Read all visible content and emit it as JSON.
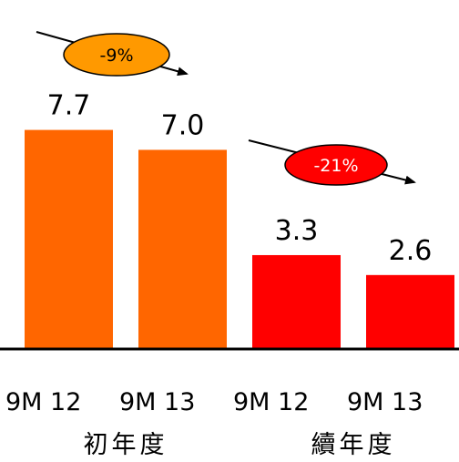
{
  "chart_data": {
    "type": "bar",
    "categories": [
      "9M 12",
      "9M 13",
      "9M 12",
      "9M 13"
    ],
    "values": [
      7.7,
      7.0,
      3.3,
      2.6
    ],
    "value_labels": [
      "7.7",
      "7.0",
      "3.3",
      "2.6"
    ],
    "bar_colors": [
      "#ff6600",
      "#ff6600",
      "#ff0000",
      "#ff0000"
    ],
    "groups": [
      {
        "label": "初年度",
        "categories": [
          0,
          1
        ],
        "change": "-9%",
        "change_color": "#ff9900"
      },
      {
        "label": "續年度",
        "categories": [
          2,
          3
        ],
        "change": "-21%",
        "change_color": "#ff0000"
      }
    ],
    "ylim": [
      0,
      9.0
    ],
    "grid": false,
    "title": "",
    "xlabel": "",
    "ylabel": ""
  }
}
